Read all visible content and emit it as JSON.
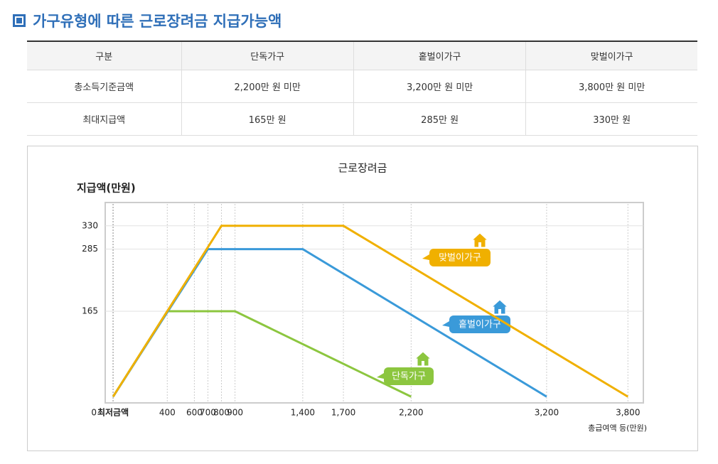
{
  "header": {
    "title": "가구유형에 따른 근로장려금 지급가능액"
  },
  "table": {
    "columns": [
      "구분",
      "단독가구",
      "홑벌이가구",
      "맞벌이가구"
    ],
    "rows": [
      [
        "총소득기준금액",
        "2,200만 원 미만",
        "3,200만 원 미만",
        "3,800만 원 미만"
      ],
      [
        "최대지급액",
        "165만 원",
        "285만 원",
        "330만 원"
      ]
    ]
  },
  "chart_data": {
    "type": "line",
    "title": "근로장려금",
    "y_label": "지급액(만원)",
    "x_label": "총급여액 등(만원)",
    "xlim": [
      -58,
      3914
    ],
    "ylim": [
      -12,
      375
    ],
    "xticks": [
      {
        "value": 0,
        "label": "최저금액"
      },
      400,
      600,
      700,
      800,
      900,
      {
        "value": 1400,
        "label": "1,400"
      },
      {
        "value": 1700,
        "label": "1,700"
      },
      {
        "value": 2200,
        "label": "2,200"
      },
      {
        "value": 3200,
        "label": "3,200"
      },
      {
        "value": 3800,
        "label": "3,800"
      }
    ],
    "yticks": [
      0,
      165,
      285,
      330
    ],
    "series": [
      {
        "name": "단독가구",
        "color": "#8cc63f",
        "x": [
          0,
          400,
          900,
          2200
        ],
        "values": [
          0,
          165,
          165,
          0
        ]
      },
      {
        "name": "홑벌이가구",
        "color": "#3a9ad9",
        "x": [
          0,
          700,
          1400,
          3200
        ],
        "values": [
          0,
          285,
          285,
          0
        ]
      },
      {
        "name": "맞벌이가구",
        "color": "#f0b000",
        "x": [
          0,
          800,
          1700,
          3800
        ],
        "values": [
          0,
          330,
          330,
          0
        ]
      }
    ]
  }
}
